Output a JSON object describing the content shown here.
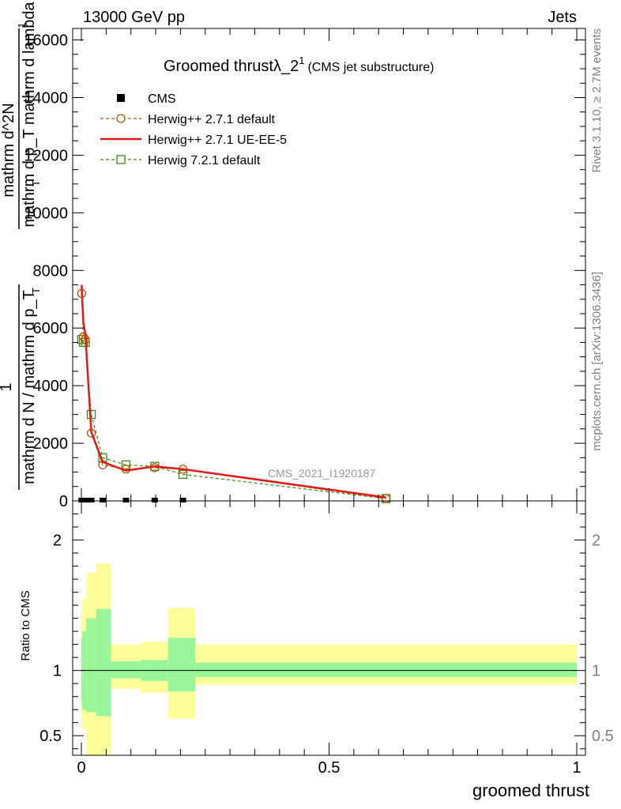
{
  "header": {
    "left": "13000 GeV pp",
    "right": "Jets"
  },
  "side": {
    "rivet": "Rivet 3.1.10, ≥ 2.7M events",
    "mcplots": "mcplots.cern.ch [arXiv:1306.3436]"
  },
  "chart_data": {
    "type": "line",
    "title_main": "Groomed thrustλ_2",
    "title_sup": "1",
    "title_sub": "(CMS jet substructure)",
    "watermark": "CMS_2021_I1920187",
    "xlabel": "groomed thrust",
    "ylabel_top": {
      "frac_num": "1",
      "frac_den": "mathrm d N / mathrm d p_T",
      "den_sub_inner": "T",
      "numer2": "mathrm d^2N",
      "denom2": "mathrm d p_T mathrm d lambda",
      "sub2": "T",
      "lam_sup": "1"
    },
    "ylabel_ratio": "Ratio to CMS",
    "xlim": [
      0,
      1
    ],
    "ylim": [
      0,
      16400
    ],
    "y_ticks": [
      0,
      2000,
      4000,
      6000,
      8000,
      10000,
      12000,
      14000,
      16000
    ],
    "y_tick_labels": [
      "0",
      "2000",
      "4000",
      "6000",
      "8000",
      "10000",
      "12000",
      "14000",
      "16000"
    ],
    "x_ticks": [
      0,
      0.5,
      1
    ],
    "x_tick_labels": [
      "0",
      "0.5",
      "1"
    ],
    "ratio_ylim": [
      0.35,
      2.3
    ],
    "ratio_ticks": [
      0.5,
      1,
      2
    ],
    "ratio_tick_labels": [
      "0.5",
      "1",
      "2"
    ],
    "legend": [
      {
        "label": "CMS",
        "style": "data"
      },
      {
        "label": "Herwig++ 2.7.1 default",
        "style": "circle",
        "color": "#b35900"
      },
      {
        "label": "Herwig++ 2.7.1 UE-EE-5",
        "style": "solid",
        "color": "#e31a1c"
      },
      {
        "label": "Herwig 7.2.1 default",
        "style": "square",
        "color": "#3a8a12"
      }
    ],
    "series": [
      {
        "name": "CMS",
        "x": [
          0.0005,
          0.002,
          0.005,
          0.008,
          0.013,
          0.02,
          0.043,
          0.09,
          0.148,
          0.205
        ],
        "y": [
          0,
          0,
          0,
          0,
          0,
          0,
          0,
          0,
          0,
          0
        ]
      },
      {
        "name": "Herwig++ 2.7.1 default",
        "x": [
          0.0005,
          0.004,
          0.008,
          0.02,
          0.043,
          0.09,
          0.148,
          0.205,
          0.615
        ],
        "y": [
          7200,
          5700,
          5600,
          2350,
          1250,
          1100,
          1150,
          1100,
          80
        ]
      },
      {
        "name": "Herwig++ 2.7.1 UE-EE-5",
        "x": [
          0.0005,
          0.004,
          0.008,
          0.02,
          0.043,
          0.09,
          0.148,
          0.205,
          0.615
        ],
        "y": [
          7500,
          6200,
          5800,
          2400,
          1350,
          1050,
          1200,
          1100,
          120
        ]
      },
      {
        "name": "Herwig 7.2.1 default",
        "x": [
          0.0005,
          0.004,
          0.008,
          0.02,
          0.043,
          0.09,
          0.148,
          0.205,
          0.615
        ],
        "y": [
          5600,
          5500,
          5500,
          3000,
          1500,
          1250,
          1200,
          920,
          80
        ]
      }
    ],
    "ratio_bands": [
      {
        "x0": 0.0,
        "x1": 0.002,
        "inner": [
          0.75,
          1.25
        ],
        "outer": [
          0.62,
          1.45
        ]
      },
      {
        "x0": 0.002,
        "x1": 0.01,
        "inner": [
          0.7,
          1.3
        ],
        "outer": [
          0.55,
          1.55
        ]
      },
      {
        "x0": 0.01,
        "x1": 0.03,
        "inner": [
          0.68,
          1.4
        ],
        "outer": [
          0.35,
          1.75
        ]
      },
      {
        "x0": 0.03,
        "x1": 0.06,
        "inner": [
          0.65,
          1.47
        ],
        "outer": [
          0.35,
          1.82
        ]
      },
      {
        "x0": 0.06,
        "x1": 0.12,
        "inner": [
          0.94,
          1.07
        ],
        "outer": [
          0.86,
          1.2
        ]
      },
      {
        "x0": 0.12,
        "x1": 0.175,
        "inner": [
          0.92,
          1.08
        ],
        "outer": [
          0.83,
          1.22
        ]
      },
      {
        "x0": 0.175,
        "x1": 0.23,
        "inner": [
          0.84,
          1.25
        ],
        "outer": [
          0.63,
          1.48
        ]
      },
      {
        "x0": 0.23,
        "x1": 1.0,
        "inner": [
          0.95,
          1.06
        ],
        "outer": [
          0.89,
          1.2
        ]
      }
    ],
    "ratio_line": 1
  },
  "colors": {
    "band_inner": "#99f599",
    "band_outer": "#fdfd99",
    "axis": "#000000",
    "side_text": "#808080"
  }
}
